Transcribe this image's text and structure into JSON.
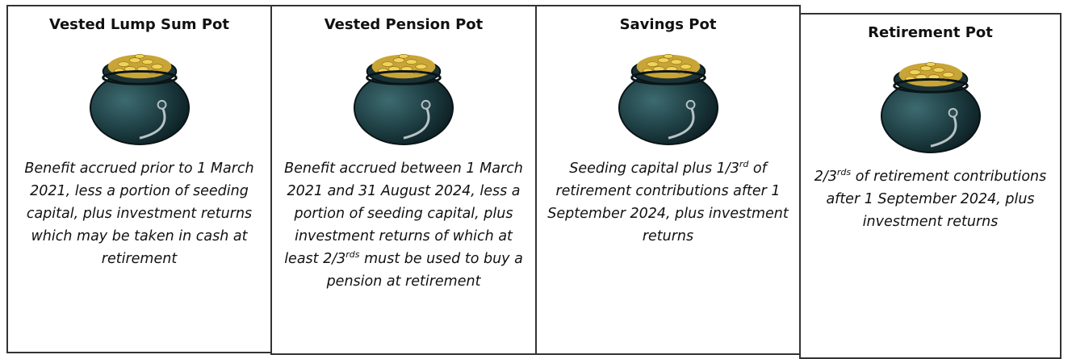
{
  "pots": [
    {
      "title": "Vested Lump Sum Pot",
      "description": [
        "Benefit accrued prior to 1 March 2021, less a portion of seeding capital, plus investment returns which may be taken in cash at retirement"
      ]
    },
    {
      "title": "Vested Pension Pot",
      "description": [
        "Benefit accrued between 1 March 2021 and 31 August 2024, less a portion of seeding capital, plus investment returns of which at least 2/3",
        "rds",
        " must be used to buy a pension at retirement"
      ]
    },
    {
      "title": "Savings Pot",
      "description": [
        "Seeding capital plus 1/3",
        "rd",
        " of retirement contributions after 1 September 2024, plus investment returns"
      ]
    },
    {
      "title": "Retirement Pot",
      "description": [
        "2/3",
        "rds",
        " of retirement contributions after 1 September 2024, plus investment returns"
      ]
    }
  ]
}
